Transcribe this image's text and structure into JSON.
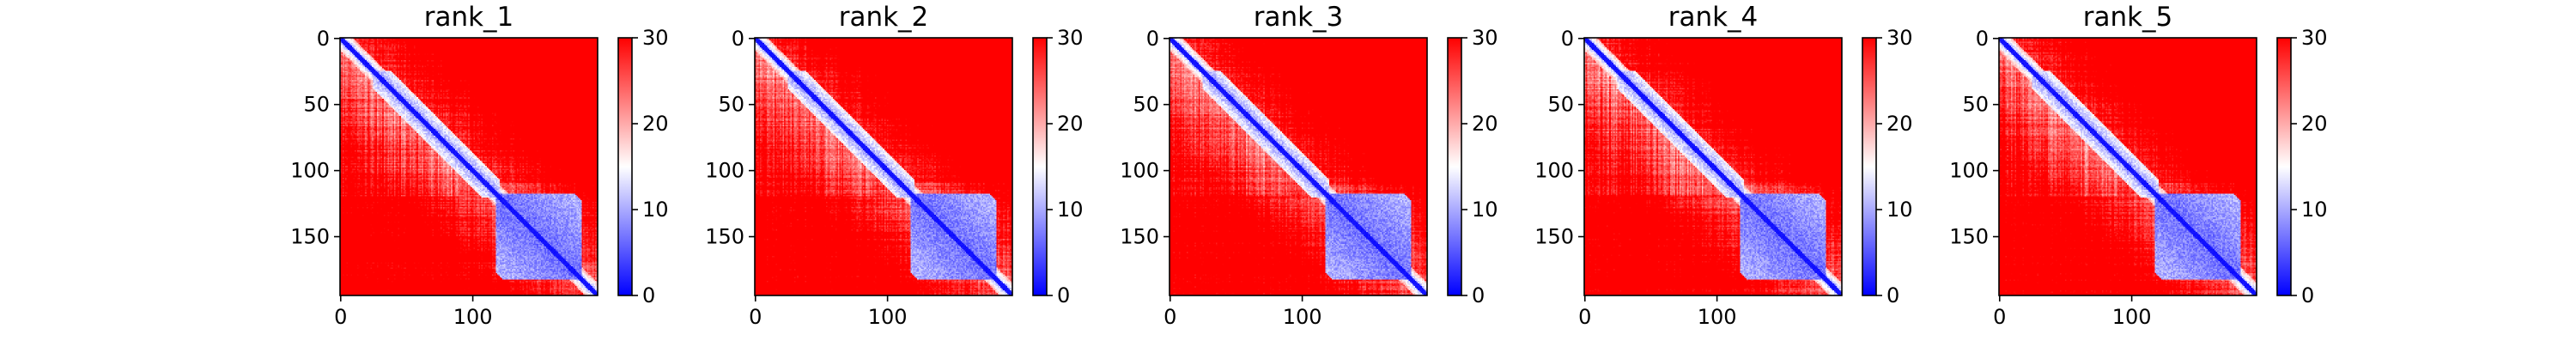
{
  "figure": {
    "panel_count": 5
  },
  "chart_data": [
    {
      "type": "heatmap",
      "title": "rank_1",
      "matrix_size": 195,
      "x_ticks": [
        "0",
        "100"
      ],
      "y_ticks": [
        "0",
        "50",
        "100",
        "150"
      ],
      "colorbar": {
        "min": 0,
        "max": 30,
        "ticks": [
          "0",
          "10",
          "20",
          "30"
        ],
        "colormap": "bwr",
        "colors": {
          "low": "#0000ff",
          "mid": "#ffffff",
          "high": "#ff0000"
        }
      },
      "blocks": [
        {
          "region": "diagonal band",
          "approx_value": 2
        },
        {
          "region": "domain ~115-185",
          "approx_value": 6
        },
        {
          "region": "off-diagonal upper-right",
          "approx_value": 28
        },
        {
          "region": "off-diagonal lower-left",
          "approx_value": 27
        }
      ]
    },
    {
      "type": "heatmap",
      "title": "rank_2",
      "matrix_size": 195,
      "x_ticks": [
        "0",
        "100"
      ],
      "y_ticks": [
        "0",
        "50",
        "100",
        "150"
      ],
      "colorbar": {
        "min": 0,
        "max": 30,
        "ticks": [
          "0",
          "10",
          "20",
          "30"
        ],
        "colormap": "bwr",
        "colors": {
          "low": "#0000ff",
          "mid": "#ffffff",
          "high": "#ff0000"
        }
      },
      "blocks": [
        {
          "region": "diagonal band",
          "approx_value": 2
        },
        {
          "region": "domain ~115-185",
          "approx_value": 6
        },
        {
          "region": "off-diagonal upper-right",
          "approx_value": 28
        },
        {
          "region": "off-diagonal lower-left",
          "approx_value": 27
        }
      ]
    },
    {
      "type": "heatmap",
      "title": "rank_3",
      "matrix_size": 195,
      "x_ticks": [
        "0",
        "100"
      ],
      "y_ticks": [
        "0",
        "50",
        "100",
        "150"
      ],
      "colorbar": {
        "min": 0,
        "max": 30,
        "ticks": [
          "0",
          "10",
          "20",
          "30"
        ],
        "colormap": "bwr",
        "colors": {
          "low": "#0000ff",
          "mid": "#ffffff",
          "high": "#ff0000"
        }
      },
      "blocks": [
        {
          "region": "diagonal band",
          "approx_value": 2
        },
        {
          "region": "domain ~115-185",
          "approx_value": 6
        },
        {
          "region": "off-diagonal upper-right",
          "approx_value": 28
        },
        {
          "region": "off-diagonal lower-left",
          "approx_value": 27
        }
      ]
    },
    {
      "type": "heatmap",
      "title": "rank_4",
      "matrix_size": 195,
      "x_ticks": [
        "0",
        "100"
      ],
      "y_ticks": [
        "0",
        "50",
        "100",
        "150"
      ],
      "colorbar": {
        "min": 0,
        "max": 30,
        "ticks": [
          "0",
          "10",
          "20",
          "30"
        ],
        "colormap": "bwr",
        "colors": {
          "low": "#0000ff",
          "mid": "#ffffff",
          "high": "#ff0000"
        }
      },
      "blocks": [
        {
          "region": "diagonal band",
          "approx_value": 2
        },
        {
          "region": "domain ~115-185",
          "approx_value": 6
        },
        {
          "region": "off-diagonal upper-right",
          "approx_value": 28
        },
        {
          "region": "off-diagonal lower-left",
          "approx_value": 27
        }
      ]
    },
    {
      "type": "heatmap",
      "title": "rank_5",
      "matrix_size": 195,
      "x_ticks": [
        "0",
        "100"
      ],
      "y_ticks": [
        "0",
        "50",
        "100",
        "150"
      ],
      "colorbar": {
        "min": 0,
        "max": 30,
        "ticks": [
          "0",
          "10",
          "20",
          "30"
        ],
        "colormap": "bwr",
        "colors": {
          "low": "#0000ff",
          "mid": "#ffffff",
          "high": "#ff0000"
        }
      },
      "blocks": [
        {
          "region": "diagonal band",
          "approx_value": 2
        },
        {
          "region": "domain ~115-185",
          "approx_value": 6
        },
        {
          "region": "off-diagonal upper-right",
          "approx_value": 28
        },
        {
          "region": "off-diagonal lower-left",
          "approx_value": 27
        }
      ]
    }
  ]
}
